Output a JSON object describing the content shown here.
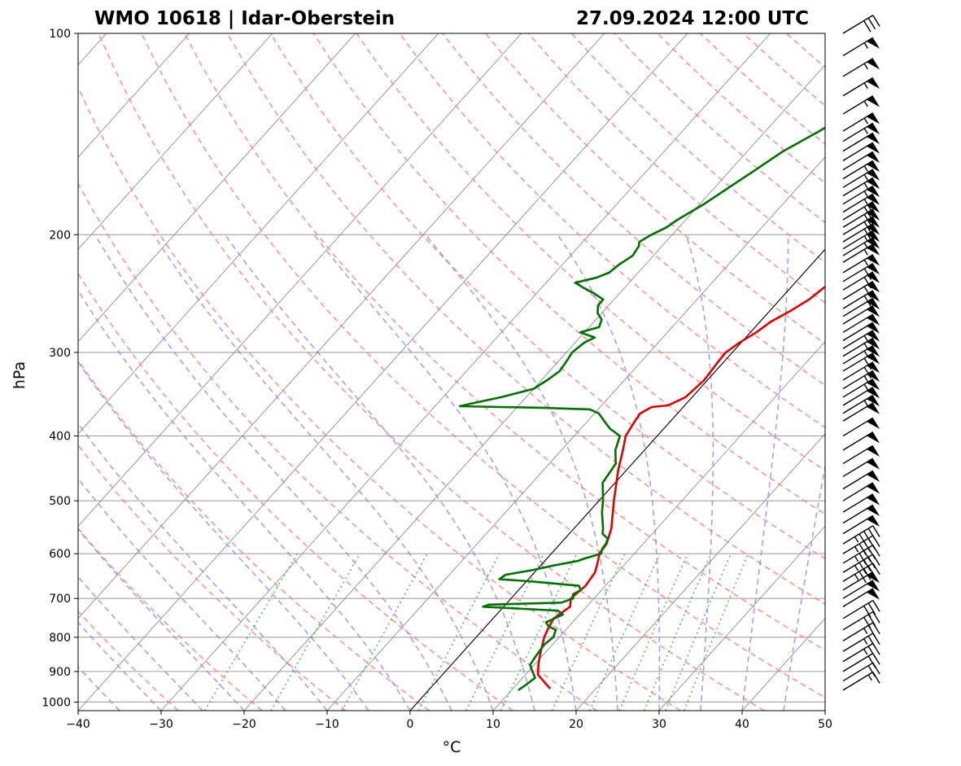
{
  "chart_data": {
    "type": "line",
    "subtype": "skew-t log-p sounding",
    "title_left": "WMO 10618 | Idar-Oberstein",
    "title_right": "27.09.2024 12:00 UTC",
    "xlabel": "°C",
    "ylabel": "hPa",
    "xlim": [
      -40,
      50
    ],
    "ylim": [
      1030,
      100
    ],
    "x_ticks": [
      -40,
      -30,
      -20,
      -10,
      0,
      10,
      20,
      30,
      40,
      50
    ],
    "x_tick_labels": [
      "−40",
      "−30",
      "−20",
      "−10",
      "0",
      "10",
      "20",
      "30",
      "40",
      "50"
    ],
    "y_ticks": [
      100,
      200,
      300,
      400,
      500,
      600,
      700,
      800,
      900,
      1000
    ],
    "y_tick_labels": [
      "100",
      "200",
      "300",
      "400",
      "500",
      "600",
      "700",
      "800",
      "900",
      "1000"
    ],
    "colors": {
      "temperature": "#e00000",
      "dewpoint": "#007000",
      "dry_adiabat": "#ff8080",
      "moist_adiabat": "#8080ff",
      "mixing_ratio": "#33aa33",
      "isotherm": "#808080",
      "isobar": "#a0a0a0",
      "zero_isotherm": "#000000"
    },
    "series": [
      {
        "name": "Temperature",
        "points": [
          [
            955,
            14.5
          ],
          [
            940,
            13.5
          ],
          [
            910,
            11.5
          ],
          [
            880,
            10.5
          ],
          [
            850,
            9.6
          ],
          [
            800,
            8.2
          ],
          [
            780,
            7.8
          ],
          [
            750,
            7.3
          ],
          [
            720,
            8.0
          ],
          [
            700,
            7.2
          ],
          [
            670,
            7.6
          ],
          [
            640,
            7.3
          ],
          [
            620,
            6.6
          ],
          [
            600,
            5.8
          ],
          [
            580,
            5.6
          ],
          [
            550,
            4.5
          ],
          [
            500,
            1.8
          ],
          [
            450,
            -1.0
          ],
          [
            420,
            -2.6
          ],
          [
            400,
            -3.8
          ],
          [
            380,
            -4.3
          ],
          [
            370,
            -4.5
          ],
          [
            362,
            -3.8
          ],
          [
            360,
            -2.0
          ],
          [
            350,
            -0.8
          ],
          [
            330,
            -0.4
          ],
          [
            310,
            -0.7
          ],
          [
            300,
            -0.8
          ],
          [
            290,
            -0.2
          ],
          [
            280,
            0.7
          ],
          [
            270,
            1.3
          ],
          [
            260,
            2.5
          ],
          [
            250,
            3.5
          ],
          [
            240,
            4.0
          ],
          [
            236,
            5.0
          ],
          [
            230,
            8.0
          ],
          [
            222,
            9.5
          ],
          [
            210,
            9.8
          ],
          [
            200,
            10.2
          ],
          [
            190,
            11.0
          ],
          [
            180,
            13.0
          ],
          [
            170,
            14.0
          ],
          [
            160,
            14.3
          ],
          [
            155,
            15.0
          ],
          [
            150,
            19.5
          ],
          [
            145,
            20.1
          ],
          [
            140,
            20.3
          ],
          [
            130,
            20.3
          ],
          [
            120,
            19.8
          ],
          [
            112,
            20.5
          ],
          [
            108,
            22.5
          ],
          [
            105,
            29.0
          ],
          [
            102,
            32.5
          ],
          [
            100,
            33.0
          ]
        ]
      },
      {
        "name": "Dewpoint",
        "points": [
          [
            960,
            10.8
          ],
          [
            940,
            11.2
          ],
          [
            920,
            11.5
          ],
          [
            900,
            10.5
          ],
          [
            880,
            9.5
          ],
          [
            850,
            9.2
          ],
          [
            820,
            9.0
          ],
          [
            800,
            9.3
          ],
          [
            780,
            8.8
          ],
          [
            770,
            7.5
          ],
          [
            760,
            6.8
          ],
          [
            740,
            8.0
          ],
          [
            730,
            7.0
          ],
          [
            720,
            -2.5
          ],
          [
            715,
            -2.0
          ],
          [
            710,
            6.5
          ],
          [
            700,
            7.5
          ],
          [
            690,
            7.0
          ],
          [
            680,
            7.5
          ],
          [
            670,
            6.8
          ],
          [
            660,
            0.5
          ],
          [
            655,
            -3.5
          ],
          [
            645,
            -3.2
          ],
          [
            635,
            -0.5
          ],
          [
            625,
            1.5
          ],
          [
            615,
            4.0
          ],
          [
            610,
            4.5
          ],
          [
            600,
            6.0
          ],
          [
            590,
            5.6
          ],
          [
            580,
            5.5
          ],
          [
            570,
            5.2
          ],
          [
            560,
            4.0
          ],
          [
            550,
            3.5
          ],
          [
            520,
            1.6
          ],
          [
            500,
            0.5
          ],
          [
            470,
            -1.5
          ],
          [
            440,
            -2.0
          ],
          [
            420,
            -3.5
          ],
          [
            400,
            -4.5
          ],
          [
            390,
            -6.5
          ],
          [
            380,
            -8.0
          ],
          [
            370,
            -9.5
          ],
          [
            365,
            -11.0
          ],
          [
            363,
            -17.0
          ],
          [
            362,
            -22.0
          ],
          [
            361,
            -27.0
          ],
          [
            358,
            -26.0
          ],
          [
            350,
            -23.0
          ],
          [
            340,
            -20.0
          ],
          [
            330,
            -19.3
          ],
          [
            320,
            -18.8
          ],
          [
            310,
            -19.0
          ],
          [
            300,
            -19.3
          ],
          [
            290,
            -18.9
          ],
          [
            285,
            -18.2
          ],
          [
            280,
            -20.5
          ],
          [
            275,
            -18.8
          ],
          [
            268,
            -19.3
          ],
          [
            262,
            -20.5
          ],
          [
            255,
            -21.3
          ],
          [
            250,
            -21.3
          ],
          [
            245,
            -23.0
          ],
          [
            240,
            -25.0
          ],
          [
            236,
            -26.5
          ],
          [
            232,
            -24.5
          ],
          [
            228,
            -23.5
          ],
          [
            222,
            -23.2
          ],
          [
            215,
            -22.5
          ],
          [
            208,
            -22.8
          ],
          [
            205,
            -23.2
          ],
          [
            200,
            -22.5
          ],
          [
            195,
            -21.5
          ],
          [
            190,
            -21.0
          ],
          [
            180,
            -19.5
          ],
          [
            170,
            -18.3
          ],
          [
            160,
            -17.0
          ],
          [
            150,
            -15.7
          ],
          [
            140,
            -13.5
          ],
          [
            130,
            -11.5
          ],
          [
            120,
            -10.0
          ],
          [
            110,
            -8.0
          ],
          [
            105,
            -6.5
          ],
          [
            100,
            -6.0
          ]
        ]
      }
    ],
    "wind_barbs": {
      "pressures": [
        100,
        108,
        116,
        124,
        132,
        140,
        145,
        150,
        155,
        160,
        165,
        170,
        175,
        180,
        185,
        190,
        195,
        200,
        205,
        210,
        215,
        220,
        228,
        235,
        242,
        250,
        258,
        265,
        272,
        280,
        288,
        296,
        304,
        312,
        320,
        330,
        340,
        350,
        360,
        370,
        380,
        400,
        420,
        440,
        460,
        480,
        500,
        520,
        540,
        560,
        580,
        600,
        620,
        640,
        660,
        680,
        700,
        720,
        750,
        780,
        810,
        840,
        870,
        900,
        930,
        960
      ],
      "speeds_kt": [
        30,
        55,
        55,
        55,
        55,
        55,
        55,
        50,
        50,
        50,
        55,
        55,
        55,
        55,
        60,
        60,
        60,
        60,
        60,
        55,
        55,
        55,
        55,
        60,
        60,
        60,
        60,
        50,
        50,
        50,
        50,
        55,
        55,
        55,
        60,
        60,
        55,
        55,
        50,
        55,
        50,
        50,
        50,
        50,
        50,
        50,
        50,
        50,
        50,
        50,
        45,
        45,
        45,
        45,
        45,
        50,
        50,
        50,
        30,
        30,
        25,
        25,
        25,
        20,
        20,
        15
      ]
    }
  }
}
